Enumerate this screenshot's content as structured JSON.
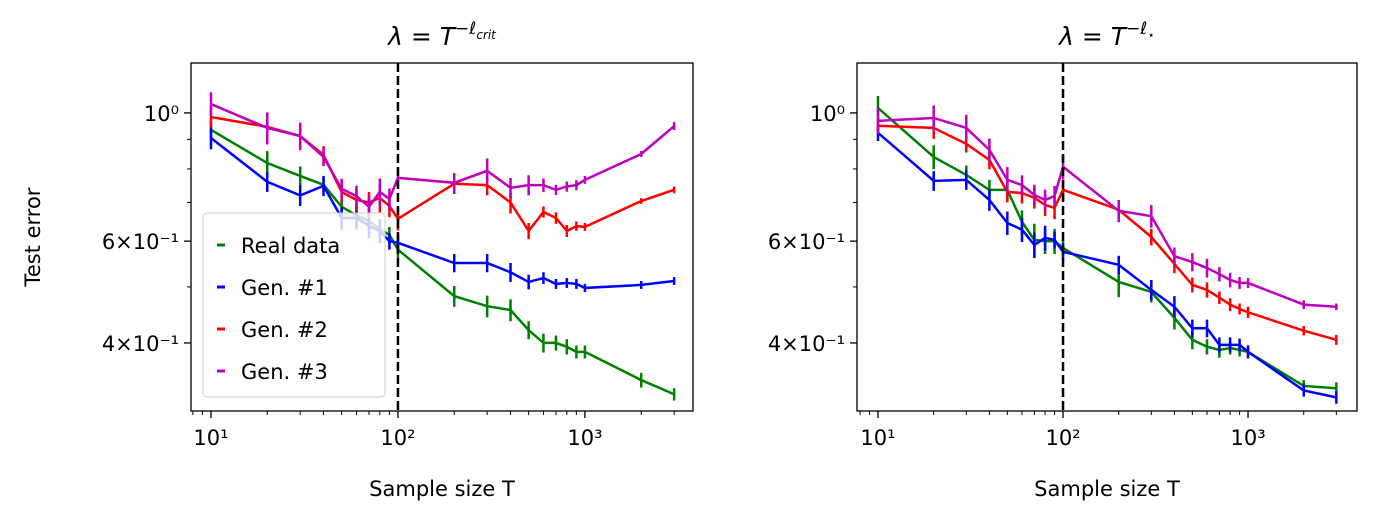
{
  "chart_data": [
    {
      "type": "line",
      "title_parts": [
        "λ = T",
        "−ℓ",
        "crit"
      ],
      "xlabel": "Sample size T",
      "ylabel": "Test error",
      "xscale": "log",
      "yscale": "log",
      "xlim": [
        7.82,
        3784
      ],
      "ylim": [
        0.305,
        1.22
      ],
      "xticks": [
        {
          "value": 10,
          "label": "10¹"
        },
        {
          "value": 100,
          "label": "10²"
        },
        {
          "value": 1000,
          "label": "10³"
        }
      ],
      "xticks_minor": [
        8,
        9,
        20,
        30,
        40,
        50,
        60,
        70,
        80,
        90,
        200,
        300,
        400,
        500,
        600,
        700,
        800,
        900,
        2000,
        3000
      ],
      "yticks": [
        {
          "value": 0.4,
          "label": "4×10⁻¹"
        },
        {
          "value": 0.6,
          "label": "6×10⁻¹"
        },
        {
          "value": 1,
          "label": "10⁰"
        }
      ],
      "yticks_minor": [
        0.5,
        0.7,
        0.8,
        0.9
      ],
      "vline": 100,
      "legend": "lower left",
      "x": [
        10,
        20,
        30,
        40,
        50,
        60,
        70,
        80,
        90,
        100,
        200,
        300,
        400,
        500,
        600,
        700,
        800,
        900,
        1000,
        2000,
        3000
      ],
      "series": [
        {
          "name": "Real data",
          "color": "#008000",
          "values": [
            0.935,
            0.819,
            0.778,
            0.751,
            0.688,
            0.665,
            0.65,
            0.63,
            0.615,
            0.58,
            0.482,
            0.463,
            0.456,
            0.421,
            0.4,
            0.4,
            0.394,
            0.386,
            0.386,
            0.345,
            0.326
          ],
          "errors": [
            0.03,
            0.04,
            0.03,
            0.02,
            0.02,
            0.03,
            0.02,
            0.02,
            0.02,
            0.02,
            0.02,
            0.02,
            0.02,
            0.015,
            0.015,
            0.012,
            0.012,
            0.01,
            0.01,
            0.01,
            0.008
          ]
        },
        {
          "name": "Gen. #1",
          "color": "#0000ff",
          "values": [
            0.905,
            0.76,
            0.72,
            0.748,
            0.658,
            0.658,
            0.638,
            0.625,
            0.6,
            0.596,
            0.55,
            0.55,
            0.53,
            0.51,
            0.518,
            0.506,
            0.508,
            0.506,
            0.498,
            0.504,
            0.512
          ],
          "errors": [
            0.04,
            0.03,
            0.03,
            0.03,
            0.03,
            0.03,
            0.03,
            0.03,
            0.02,
            0.02,
            0.02,
            0.02,
            0.02,
            0.015,
            0.012,
            0.01,
            0.01,
            0.01,
            0.008,
            0.008,
            0.008
          ]
        },
        {
          "name": "Gen. #2",
          "color": "#ff0000",
          "values": [
            0.984,
            0.946,
            0.912,
            0.846,
            0.73,
            0.707,
            0.7,
            0.713,
            0.69,
            0.656,
            0.754,
            0.75,
            0.7,
            0.625,
            0.674,
            0.658,
            0.625,
            0.637,
            0.635,
            0.704,
            0.736
          ],
          "errors": [
            0.04,
            0.04,
            0.04,
            0.03,
            0.03,
            0.03,
            0.03,
            0.04,
            0.03,
            0.03,
            0.03,
            0.03,
            0.03,
            0.02,
            0.015,
            0.015,
            0.015,
            0.012,
            0.01,
            0.008,
            0.01
          ]
        },
        {
          "name": "Gen. #3",
          "color": "#bf00bf",
          "values": [
            1.036,
            0.942,
            0.912,
            0.839,
            0.739,
            0.718,
            0.688,
            0.73,
            0.71,
            0.772,
            0.757,
            0.794,
            0.742,
            0.75,
            0.75,
            0.736,
            0.746,
            0.75,
            0.766,
            0.849,
            0.949
          ],
          "errors": [
            0.05,
            0.06,
            0.05,
            0.03,
            0.03,
            0.03,
            0.03,
            0.04,
            0.03,
            0.03,
            0.03,
            0.04,
            0.03,
            0.03,
            0.02,
            0.015,
            0.015,
            0.015,
            0.012,
            0.01,
            0.015
          ]
        }
      ]
    },
    {
      "type": "line",
      "title_parts": [
        "λ = T",
        "−ℓ",
        "⋆"
      ],
      "xlabel": "Sample size T",
      "xscale": "log",
      "yscale": "log",
      "xlim": [
        7.7,
        3880
      ],
      "ylim": [
        0.305,
        1.22
      ],
      "xticks": [
        {
          "value": 10,
          "label": "10¹"
        },
        {
          "value": 100,
          "label": "10²"
        },
        {
          "value": 1000,
          "label": "10³"
        }
      ],
      "xticks_minor": [
        8,
        9,
        20,
        30,
        40,
        50,
        60,
        70,
        80,
        90,
        200,
        300,
        400,
        500,
        600,
        700,
        800,
        900,
        2000,
        3000
      ],
      "yticks": [
        {
          "value": 0.4,
          "label": "4×10⁻¹"
        },
        {
          "value": 0.6,
          "label": "6×10⁻¹"
        },
        {
          "value": 1,
          "label": "10⁰"
        }
      ],
      "yticks_minor": [
        0.5,
        0.7,
        0.8,
        0.9
      ],
      "vline": 100,
      "legend": false,
      "x": [
        10,
        20,
        30,
        40,
        50,
        60,
        70,
        80,
        90,
        100,
        200,
        300,
        400,
        500,
        600,
        700,
        800,
        900,
        1000,
        2000,
        3000
      ],
      "series": [
        {
          "name": "Real data",
          "color": "#008000",
          "values": [
            1.02,
            0.839,
            0.781,
            0.736,
            0.736,
            0.648,
            0.603,
            0.6,
            0.6,
            0.584,
            0.51,
            0.49,
            0.442,
            0.405,
            0.394,
            0.389,
            0.392,
            0.389,
            0.386,
            0.337,
            0.334
          ],
          "errors": [
            0.05,
            0.04,
            0.03,
            0.03,
            0.03,
            0.03,
            0.04,
            0.03,
            0.03,
            0.02,
            0.03,
            0.02,
            0.02,
            0.015,
            0.012,
            0.012,
            0.01,
            0.01,
            0.01,
            0.008,
            0.008
          ]
        },
        {
          "name": "Gen. #1",
          "color": "#0000ff",
          "values": [
            0.924,
            0.763,
            0.766,
            0.707,
            0.645,
            0.628,
            0.591,
            0.608,
            0.603,
            0.575,
            0.546,
            0.494,
            0.462,
            0.424,
            0.424,
            0.397,
            0.397,
            0.397,
            0.386,
            0.331,
            0.322
          ],
          "errors": [
            0.03,
            0.03,
            0.03,
            0.03,
            0.03,
            0.03,
            0.03,
            0.03,
            0.02,
            0.02,
            0.02,
            0.02,
            0.02,
            0.015,
            0.015,
            0.012,
            0.012,
            0.01,
            0.01,
            0.008,
            0.008
          ]
        },
        {
          "name": "Gen. #2",
          "color": "#ff0000",
          "values": [
            0.95,
            0.942,
            0.884,
            0.829,
            0.73,
            0.727,
            0.713,
            0.693,
            0.685,
            0.736,
            0.68,
            0.61,
            0.548,
            0.504,
            0.494,
            0.479,
            0.466,
            0.458,
            0.452,
            0.42,
            0.405
          ],
          "errors": [
            0.03,
            0.04,
            0.03,
            0.03,
            0.03,
            0.03,
            0.03,
            0.03,
            0.03,
            0.03,
            0.02,
            0.02,
            0.02,
            0.015,
            0.015,
            0.012,
            0.012,
            0.01,
            0.01,
            0.008,
            0.008
          ]
        },
        {
          "name": "Gen. #3",
          "color": "#bf00bf",
          "values": [
            0.969,
            0.98,
            0.942,
            0.863,
            0.766,
            0.75,
            0.721,
            0.707,
            0.718,
            0.807,
            0.677,
            0.663,
            0.565,
            0.552,
            0.539,
            0.526,
            0.514,
            0.508,
            0.508,
            0.466,
            0.462
          ],
          "errors": [
            0.05,
            0.05,
            0.05,
            0.04,
            0.04,
            0.03,
            0.03,
            0.03,
            0.03,
            0.04,
            0.03,
            0.03,
            0.02,
            0.02,
            0.02,
            0.015,
            0.015,
            0.012,
            0.01,
            0.008,
            0.006
          ]
        }
      ]
    }
  ]
}
